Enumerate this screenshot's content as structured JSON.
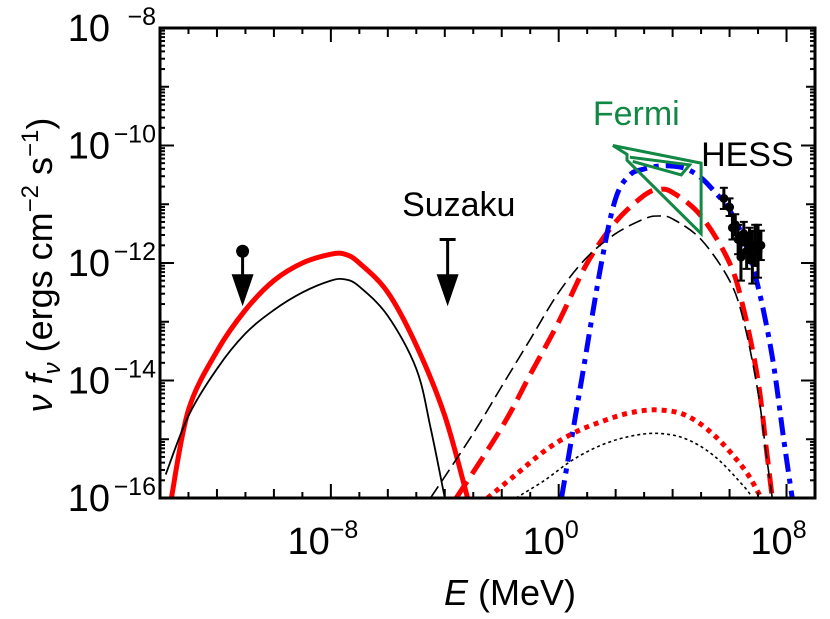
{
  "chart_data": {
    "type": "line",
    "xlabel": {
      "var": "E",
      "unit": "(MeV)"
    },
    "ylabel": {
      "nu": "ν",
      "f": "f",
      "sub": "ν",
      "open": "(ergs cm",
      "exp1": "−2",
      "mid": " s",
      "exp2": "−1",
      "close": ")"
    },
    "x_scale": "log",
    "y_scale": "log",
    "xlim": [
      1e-14,
      1000000000.0
    ],
    "ylim": [
      1e-16,
      1e-08
    ],
    "x_ticks": [
      {
        "base": "10",
        "exp": "−8",
        "value": 1e-08
      },
      {
        "base": "10",
        "exp": "0",
        "value": 1
      },
      {
        "base": "10",
        "exp": "8",
        "value": 100000000.0
      }
    ],
    "y_ticks": [
      {
        "base": "10",
        "exp": "−8",
        "value": 1e-08
      },
      {
        "base": "10",
        "exp": "−10",
        "value": 1e-10
      },
      {
        "base": "10",
        "exp": "−12",
        "value": 1e-12
      },
      {
        "base": "10",
        "exp": "−14",
        "value": 1e-14
      },
      {
        "base": "10",
        "exp": "−16",
        "value": 1e-16
      }
    ],
    "series": [
      {
        "color": "#ff0000",
        "style": "solid-thick",
        "points": [
          [
            -13.6,
            -16.0
          ],
          [
            -13.0,
            -14.5
          ],
          [
            -12.0,
            -13.5
          ],
          [
            -11.0,
            -12.8
          ],
          [
            -10.0,
            -12.3
          ],
          [
            -9.0,
            -12.0
          ],
          [
            -8.0,
            -11.85
          ],
          [
            -7.5,
            -11.85
          ],
          [
            -7.0,
            -12.0
          ],
          [
            -6.0,
            -12.5
          ],
          [
            -5.0,
            -13.4
          ],
          [
            -4.0,
            -14.6
          ],
          [
            -3.2,
            -16.0
          ]
        ]
      },
      {
        "color": "#000000",
        "style": "solid-thin",
        "points": [
          [
            -13.8,
            -15.6
          ],
          [
            -13.0,
            -14.6
          ],
          [
            -12.0,
            -13.8
          ],
          [
            -11.0,
            -13.2
          ],
          [
            -10.0,
            -12.8
          ],
          [
            -9.0,
            -12.5
          ],
          [
            -8.0,
            -12.3
          ],
          [
            -7.5,
            -12.28
          ],
          [
            -7.0,
            -12.4
          ],
          [
            -6.0,
            -12.9
          ],
          [
            -5.0,
            -13.8
          ],
          [
            -4.5,
            -14.8
          ],
          [
            -4.0,
            -16.0
          ]
        ]
      },
      {
        "color": "#ff0000",
        "style": "dashed-thick",
        "points": [
          [
            -3.6,
            -16.0
          ],
          [
            -2.0,
            -14.8
          ],
          [
            -1.0,
            -13.9
          ],
          [
            0.0,
            -13.0
          ],
          [
            1.0,
            -12.0
          ],
          [
            2.0,
            -11.3
          ],
          [
            3.0,
            -10.85
          ],
          [
            3.5,
            -10.75
          ],
          [
            4.0,
            -10.8
          ],
          [
            5.0,
            -11.2
          ],
          [
            6.0,
            -12.0
          ],
          [
            6.5,
            -12.8
          ],
          [
            7.0,
            -14.0
          ],
          [
            7.3,
            -15.2
          ],
          [
            7.5,
            -16.0
          ]
        ]
      },
      {
        "color": "#000000",
        "style": "dashed-thin",
        "points": [
          [
            -4.5,
            -16.0
          ],
          [
            -3.0,
            -14.9
          ],
          [
            -2.0,
            -14.1
          ],
          [
            -1.0,
            -13.3
          ],
          [
            0.0,
            -12.5
          ],
          [
            1.0,
            -11.9
          ],
          [
            2.0,
            -11.5
          ],
          [
            3.0,
            -11.25
          ],
          [
            3.5,
            -11.2
          ],
          [
            4.0,
            -11.25
          ],
          [
            5.0,
            -11.6
          ],
          [
            6.0,
            -12.3
          ],
          [
            6.5,
            -13.0
          ],
          [
            7.0,
            -14.2
          ],
          [
            7.3,
            -15.3
          ],
          [
            7.5,
            -16.0
          ]
        ]
      },
      {
        "color": "#0000ff",
        "style": "dashdot-thick",
        "points": [
          [
            0.1,
            -16.0
          ],
          [
            0.8,
            -14.0
          ],
          [
            1.5,
            -12.0
          ],
          [
            2.0,
            -10.9
          ],
          [
            2.5,
            -10.5
          ],
          [
            3.0,
            -10.4
          ],
          [
            3.5,
            -10.35
          ],
          [
            4.0,
            -10.35
          ],
          [
            4.5,
            -10.4
          ],
          [
            5.0,
            -10.55
          ],
          [
            5.5,
            -10.8
          ],
          [
            6.0,
            -11.1
          ],
          [
            6.5,
            -11.6
          ],
          [
            7.0,
            -12.4
          ],
          [
            7.5,
            -13.6
          ],
          [
            7.9,
            -15.0
          ],
          [
            8.2,
            -16.0
          ]
        ]
      },
      {
        "color": "#ff0000",
        "style": "dotted-thick",
        "points": [
          [
            -2.5,
            -16.0
          ],
          [
            -1.5,
            -15.6
          ],
          [
            -0.5,
            -15.2
          ],
          [
            0.5,
            -14.9
          ],
          [
            1.5,
            -14.7
          ],
          [
            2.5,
            -14.55
          ],
          [
            3.5,
            -14.5
          ],
          [
            4.5,
            -14.6
          ],
          [
            5.5,
            -14.95
          ],
          [
            6.5,
            -15.5
          ],
          [
            7.0,
            -15.9
          ],
          [
            7.1,
            -16.0
          ]
        ]
      },
      {
        "color": "#000000",
        "style": "dotted-thin",
        "points": [
          [
            -1.5,
            -16.0
          ],
          [
            -0.5,
            -15.7
          ],
          [
            0.5,
            -15.35
          ],
          [
            1.5,
            -15.1
          ],
          [
            2.5,
            -14.95
          ],
          [
            3.5,
            -14.9
          ],
          [
            4.5,
            -15.0
          ],
          [
            5.5,
            -15.3
          ],
          [
            6.5,
            -15.8
          ],
          [
            6.8,
            -16.0
          ]
        ]
      }
    ],
    "upper_limits": [
      {
        "x": -11.1,
        "y_top": -11.8,
        "y_bottom": -12.6,
        "marker": "dot"
      },
      {
        "x": -3.9,
        "y_top": -11.6,
        "y_bottom": -12.6,
        "marker": "bar"
      }
    ],
    "fermi_bowtie": {
      "color": "#118844",
      "outline": [
        [
          1.9,
          -10.0
        ],
        [
          5.0,
          -10.3
        ],
        [
          5.0,
          -11.5
        ],
        [
          2.4,
          -10.25
        ],
        [
          2.4,
          -10.15
        ],
        [
          1.9,
          -10.0
        ]
      ],
      "inner": [
        [
          2.5,
          -10.2
        ],
        [
          4.6,
          -10.33
        ],
        [
          4.3,
          -10.5
        ],
        [
          2.6,
          -10.27
        ]
      ]
    },
    "hess_points": [
      {
        "x": 5.8,
        "y": -10.9,
        "err": 0.18
      },
      {
        "x": 6.0,
        "y": -11.05,
        "err": 0.15
      },
      {
        "x": 6.1,
        "y": -11.4,
        "err": 0.2
      },
      {
        "x": 6.2,
        "y": -11.35,
        "err": 0.18
      },
      {
        "x": 6.3,
        "y": -11.6,
        "err": 0.25
      },
      {
        "x": 6.4,
        "y": -11.9,
        "err": 0.4
      },
      {
        "x": 6.5,
        "y": -11.5,
        "err": 0.2
      },
      {
        "x": 6.6,
        "y": -11.8,
        "err": 0.3
      },
      {
        "x": 6.7,
        "y": -11.7,
        "err": 0.3
      },
      {
        "x": 6.8,
        "y": -11.9,
        "err": 0.45
      },
      {
        "x": 6.9,
        "y": -11.7,
        "err": 0.35
      },
      {
        "x": 7.0,
        "y": -11.8,
        "err": 0.45
      },
      {
        "x": 7.1,
        "y": -11.7,
        "err": 0.25
      }
    ],
    "annotations": [
      {
        "text": "Fermi",
        "x": 1.2,
        "y": -9.65,
        "color": "#118844"
      },
      {
        "text": "HESS",
        "x": 5.0,
        "y": -10.35,
        "color": "#000000"
      },
      {
        "text": "Suzaku",
        "x": -5.5,
        "y": -11.2,
        "color": "#000000"
      }
    ]
  }
}
